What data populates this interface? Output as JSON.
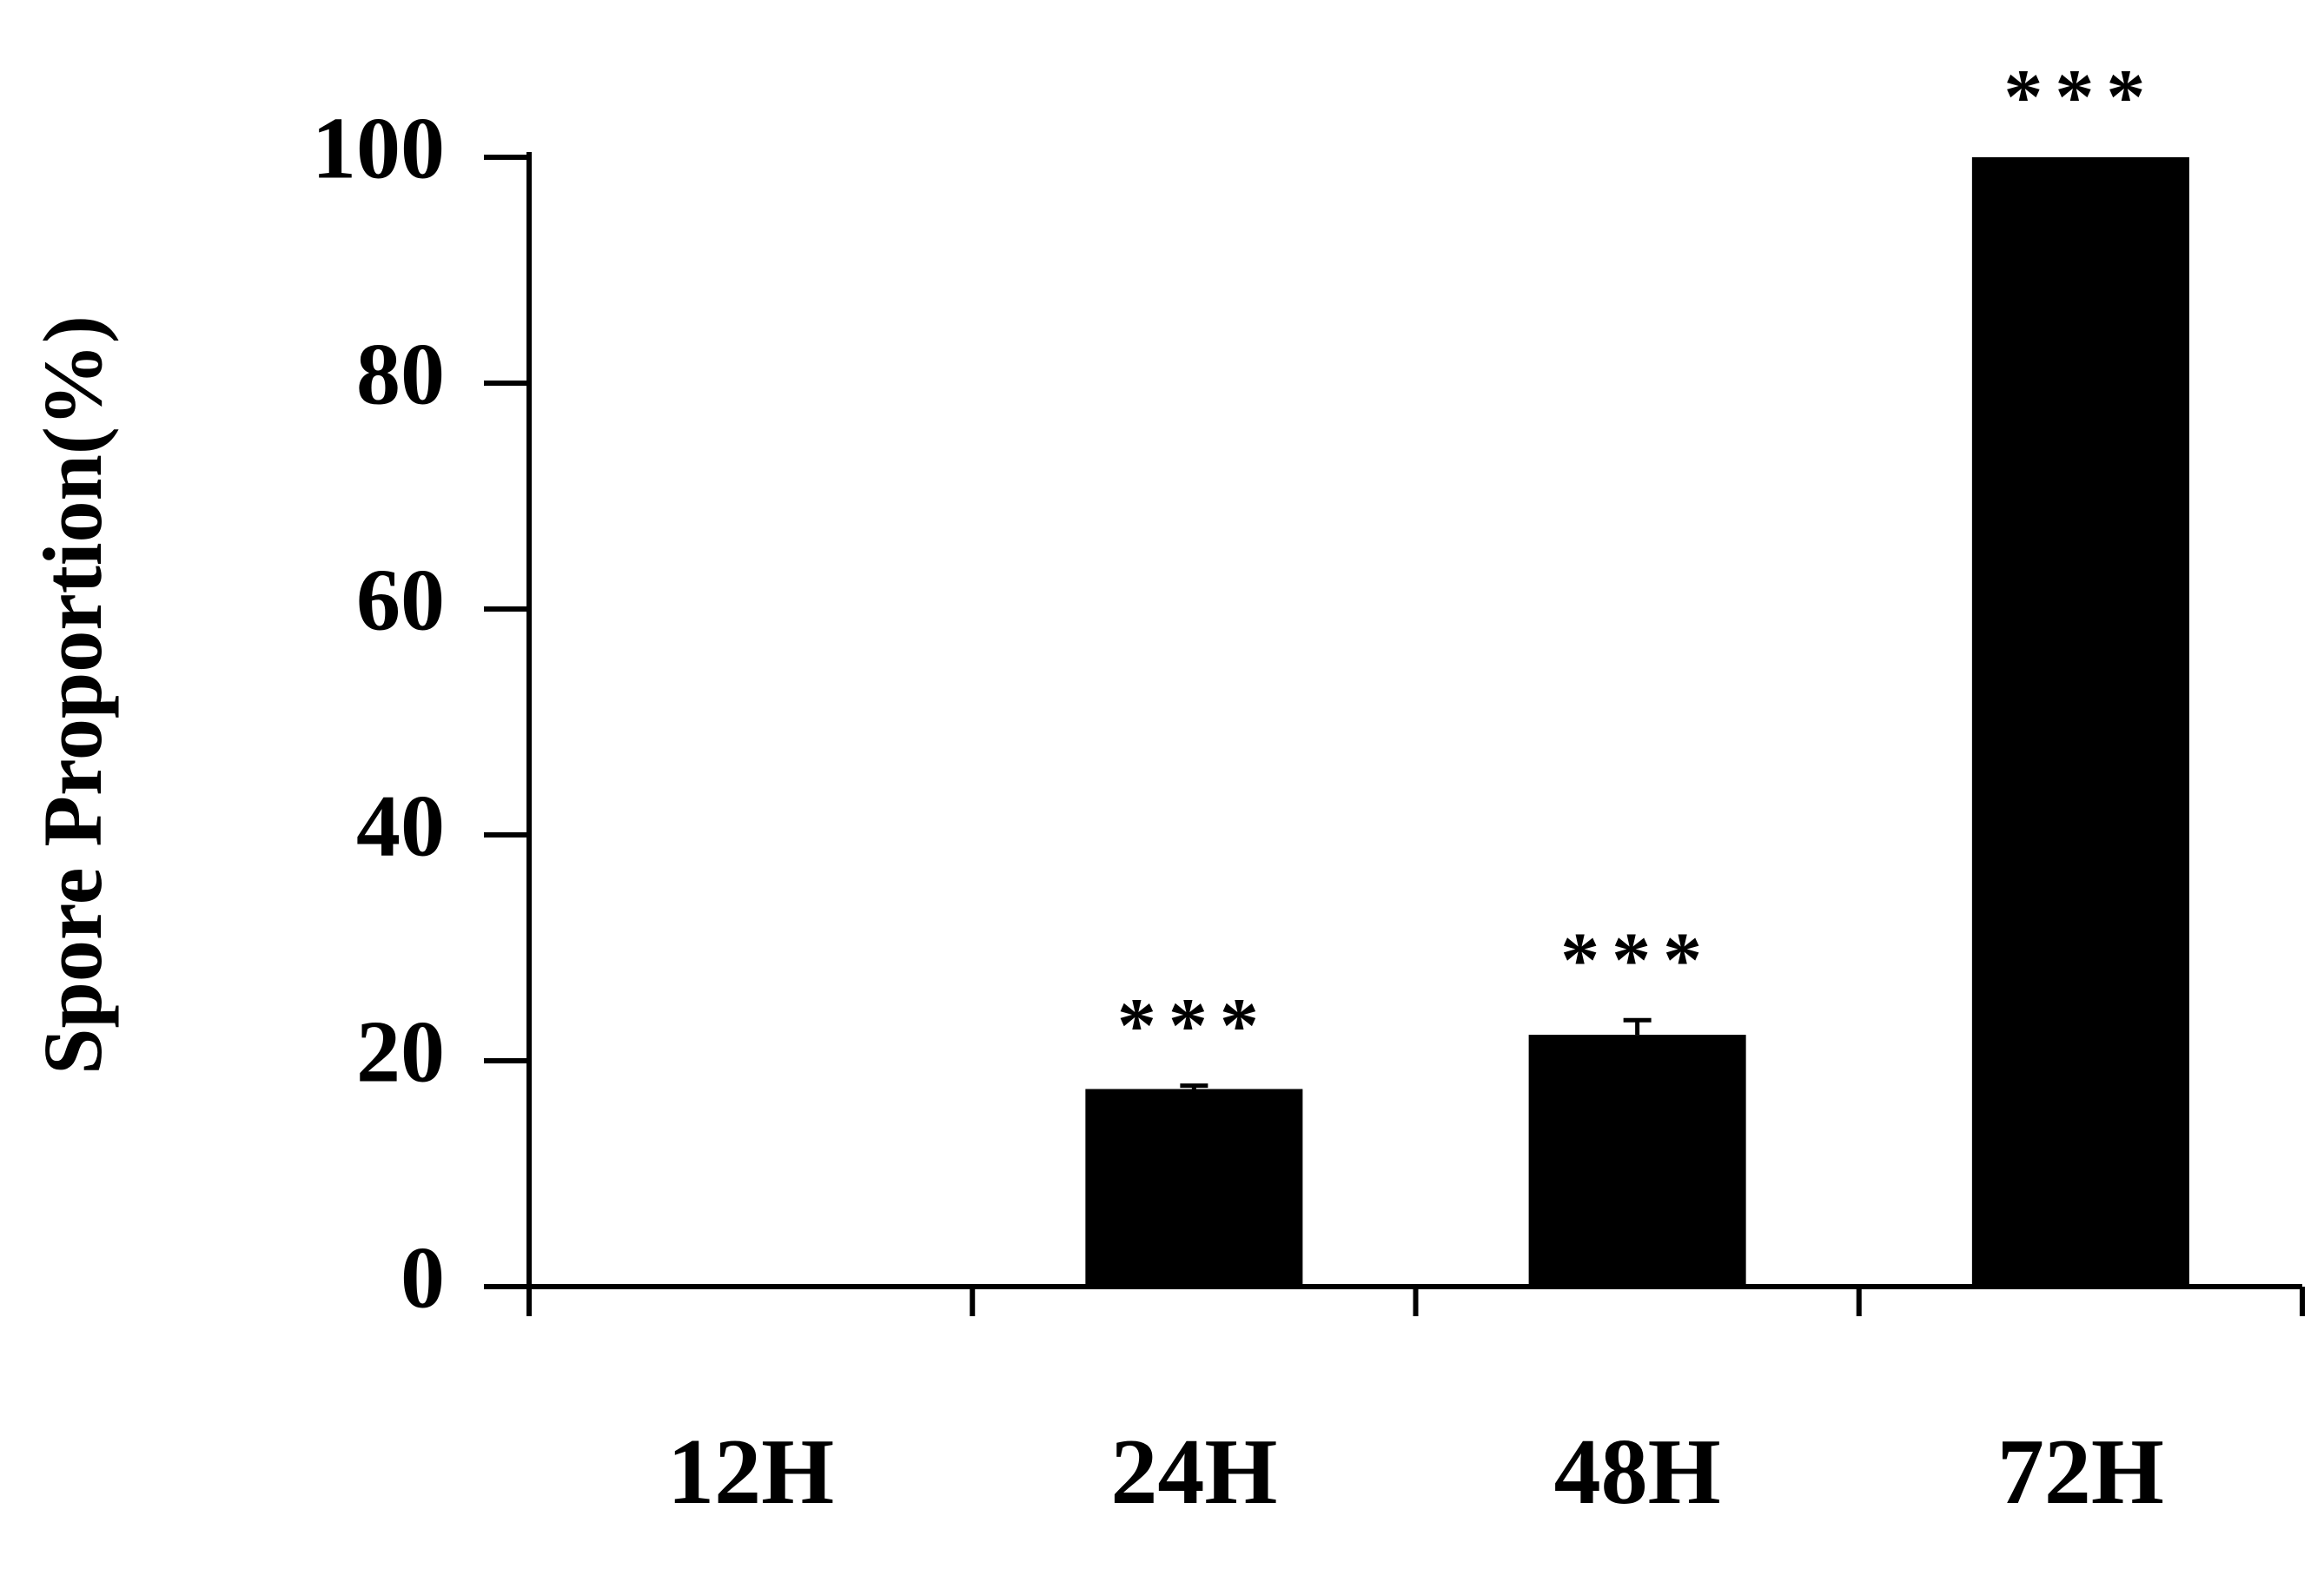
{
  "chart_data": {
    "type": "bar",
    "y_label": "Spore Proportion(%)",
    "categories": [
      "12H",
      "24H",
      "48H",
      "72H"
    ],
    "values": [
      0,
      17.5,
      22.3,
      100
    ],
    "errors": [
      0,
      0.3,
      1.3,
      0
    ],
    "annotations": [
      null,
      "***",
      "***",
      "***"
    ],
    "color": "#000000",
    "ylim": [
      0,
      100
    ],
    "yticks": [
      0,
      20,
      40,
      60,
      80,
      100
    ],
    "grid": false
  }
}
